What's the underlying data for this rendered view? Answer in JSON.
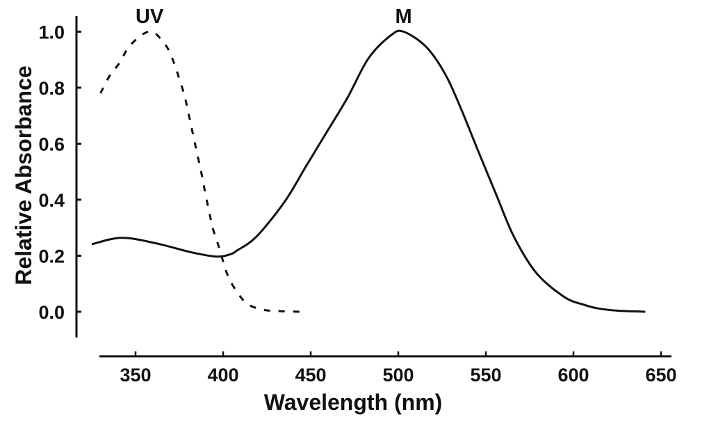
{
  "chart_data": {
    "type": "line",
    "title": "",
    "xlabel": "Wavelength (nm)",
    "ylabel": "Relative Absorbance",
    "xlim": [
      325,
      650
    ],
    "ylim": [
      -0.1,
      1.05
    ],
    "xticks": [
      350,
      400,
      450,
      500,
      550,
      600,
      650
    ],
    "xtick_labels": [
      "350",
      "400",
      "450",
      "500",
      "550",
      "600",
      "650"
    ],
    "yticks": [
      0.0,
      0.2,
      0.4,
      0.6,
      0.8,
      1.0
    ],
    "ytick_labels": [
      "0.0",
      "0.2",
      "0.4",
      "0.6",
      "0.8",
      "1.0"
    ],
    "grid": false,
    "legend": "none",
    "series": [
      {
        "name": "UV",
        "style": "dashed",
        "color": "#111111",
        "peak_nm": 360,
        "x": [
          330,
          335,
          341,
          346,
          353,
          358,
          362,
          368,
          372,
          375,
          378,
          380,
          382,
          384,
          388,
          390,
          392,
          394,
          397,
          400,
          403,
          408,
          414,
          423,
          433,
          444
        ],
        "y": [
          0.78,
          0.84,
          0.89,
          0.944,
          0.986,
          1.0,
          0.99,
          0.944,
          0.888,
          0.831,
          0.771,
          0.714,
          0.657,
          0.598,
          0.483,
          0.417,
          0.359,
          0.3,
          0.243,
          0.18,
          0.124,
          0.07,
          0.027,
          0.007,
          0.002,
          0.0
        ]
      },
      {
        "name": "M",
        "style": "solid",
        "color": "#111111",
        "peak_nm": 503,
        "x": [
          325,
          342,
          362,
          382,
          396,
          404,
          408,
          419,
          435,
          447,
          459,
          471,
          483,
          496,
          503,
          516,
          527,
          536,
          545,
          556,
          566,
          579,
          595,
          606,
          614,
          625,
          641
        ],
        "y": [
          0.241,
          0.264,
          0.244,
          0.212,
          0.197,
          0.205,
          0.219,
          0.268,
          0.392,
          0.516,
          0.64,
          0.764,
          0.905,
          0.988,
          1.0,
          0.945,
          0.846,
          0.722,
          0.583,
          0.417,
          0.268,
          0.137,
          0.052,
          0.025,
          0.012,
          0.004,
          0.0
        ]
      }
    ],
    "annotations": [
      {
        "text": "UV",
        "x": 358,
        "y": 1.05
      },
      {
        "text": "M",
        "x": 503,
        "y": 1.05
      }
    ]
  }
}
